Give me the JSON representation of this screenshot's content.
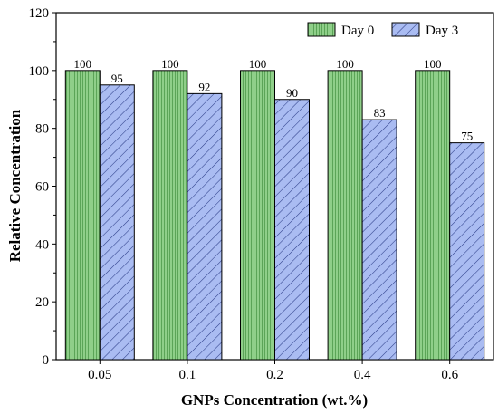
{
  "chart_data": {
    "type": "bar",
    "title": "",
    "xlabel": "GNPs Concentration (wt.%)",
    "ylabel": "Relative Concentration",
    "categories": [
      "0.05",
      "0.1",
      "0.2",
      "0.4",
      "0.6"
    ],
    "series": [
      {
        "name": "Day 0",
        "values": [
          100,
          100,
          100,
          100,
          100
        ],
        "color": "#7fbf7b",
        "pattern": "vertical-lines"
      },
      {
        "name": "Day 3",
        "values": [
          95,
          92,
          90,
          83,
          75
        ],
        "color": "#a6b8f0",
        "pattern": "diagonal-hatch"
      }
    ],
    "data_labels": [
      [
        "100",
        "100",
        "100",
        "100",
        "100"
      ],
      [
        "95",
        "92",
        "90",
        "83",
        "75"
      ]
    ],
    "ylim": [
      0,
      120
    ],
    "yticks": [
      "0",
      "20",
      "40",
      "60",
      "80",
      "100",
      "120"
    ],
    "grid": false,
    "legend_position": "top-right"
  }
}
